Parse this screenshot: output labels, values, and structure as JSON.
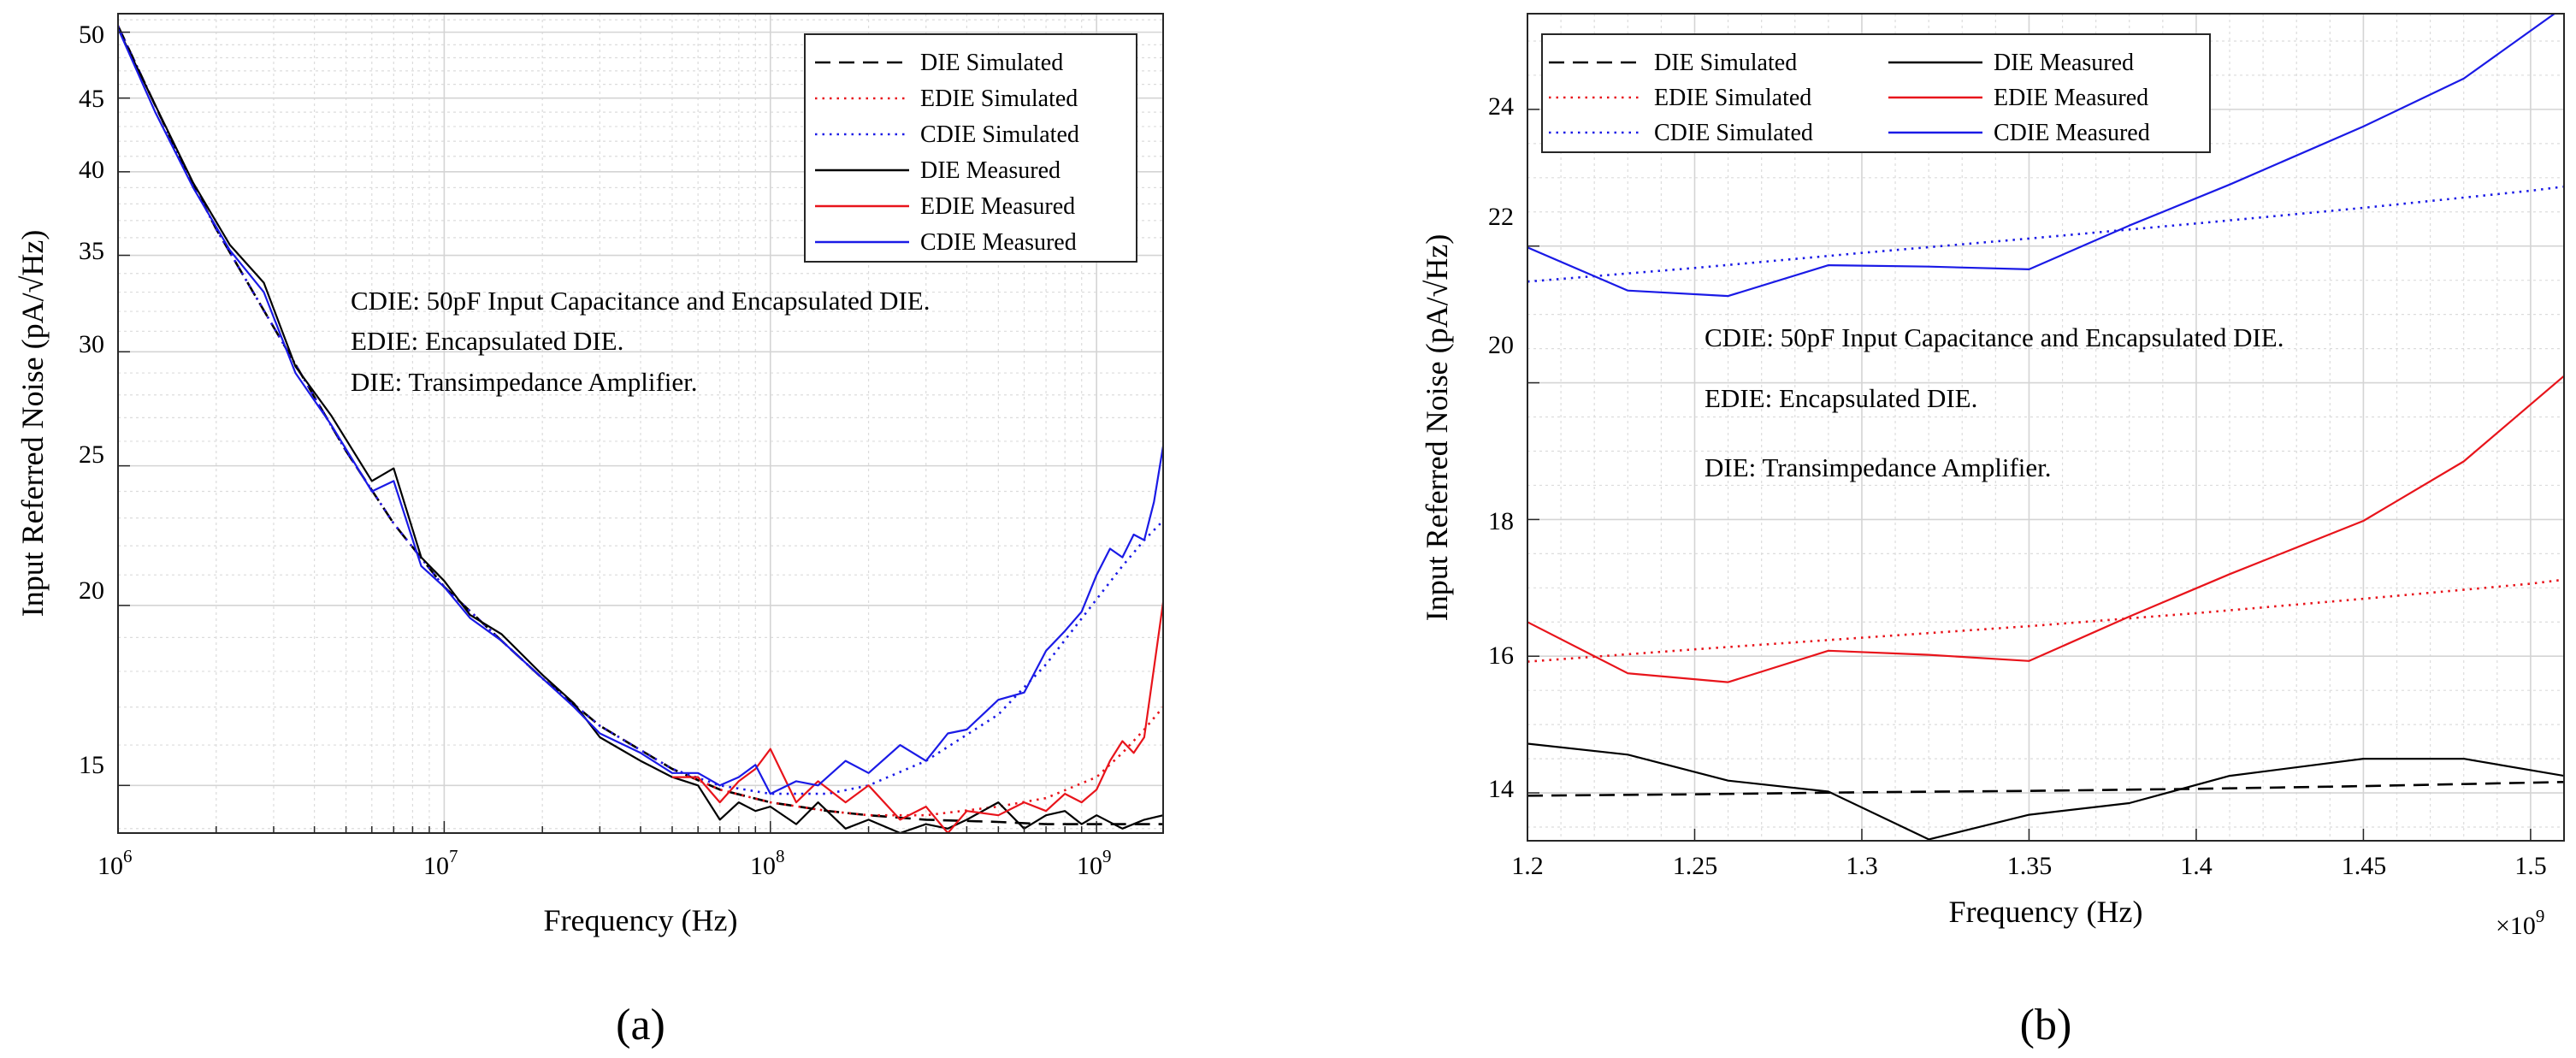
{
  "chart_data": [
    {
      "type": "line",
      "panel_label": "(a)",
      "xscale": "log",
      "yscale": "log",
      "xlim": [
        1000000,
        1600000000
      ],
      "ylim": [
        13.9,
        51.5
      ],
      "xlabel": "Frequency (Hz)",
      "ylabel": "Input Referred Noise (pA/√Hz)",
      "x_ticks": [
        {
          "value": 1000000,
          "base": "10",
          "exp": "6"
        },
        {
          "value": 10000000,
          "base": "10",
          "exp": "7"
        },
        {
          "value": 100000000,
          "base": "10",
          "exp": "8"
        },
        {
          "value": 1000000000,
          "base": "10",
          "exp": "9"
        }
      ],
      "y_ticks": [
        {
          "value": 15,
          "label": "15"
        },
        {
          "value": 20,
          "label": "20"
        },
        {
          "value": 25,
          "label": "25"
        },
        {
          "value": 30,
          "label": "30"
        },
        {
          "value": 35,
          "label": "35"
        },
        {
          "value": 40,
          "label": "40"
        },
        {
          "value": 45,
          "label": "45"
        },
        {
          "value": 50,
          "label": "50"
        }
      ],
      "legend_position": "top-right",
      "annotations": [
        "CDIE: 50pF Input Capacitance and Encapsulated DIE.",
        "EDIE: Encapsulated DIE.",
        "DIE: Transimpedance Amplifier."
      ],
      "series": [
        {
          "name": "DIE Simulated",
          "style": "dashed",
          "color": "#000000",
          "x": [
            1000000,
            1500000,
            2000000,
            3000000,
            5000000,
            7000000,
            10000000,
            15000000,
            20000000,
            30000000,
            50000000,
            70000000,
            100000000,
            150000000,
            200000000,
            300000000,
            500000000,
            700000000,
            1000000000,
            1600000000
          ],
          "y": [
            50.5,
            41.5,
            36.5,
            31.2,
            25.6,
            22.8,
            20.6,
            18.9,
            17.8,
            16.5,
            15.4,
            14.9,
            14.6,
            14.4,
            14.3,
            14.2,
            14.15,
            14.1,
            14.1,
            14.1
          ]
        },
        {
          "name": "EDIE Simulated",
          "style": "dotted",
          "color": "#e8141b",
          "x": [
            1000000,
            1500000,
            2000000,
            3000000,
            5000000,
            7000000,
            10000000,
            15000000,
            20000000,
            30000000,
            50000000,
            70000000,
            100000000,
            150000000,
            200000000,
            300000000,
            500000000,
            700000000,
            1000000000,
            1200000000,
            1400000000,
            1600000000
          ],
          "y": [
            50.5,
            41.5,
            36.5,
            31.2,
            25.6,
            22.8,
            20.6,
            18.9,
            17.8,
            16.5,
            15.4,
            14.9,
            14.6,
            14.4,
            14.3,
            14.3,
            14.5,
            14.7,
            15.2,
            15.8,
            16.4,
            17.0
          ]
        },
        {
          "name": "CDIE Simulated",
          "style": "dotted",
          "color": "#1a1ae6",
          "x": [
            1000000,
            1500000,
            2000000,
            3000000,
            5000000,
            7000000,
            10000000,
            15000000,
            20000000,
            30000000,
            50000000,
            70000000,
            100000000,
            150000000,
            200000000,
            300000000,
            500000000,
            700000000,
            1000000000,
            1200000000,
            1400000000,
            1600000000
          ],
          "y": [
            50.5,
            41.5,
            36.5,
            31.2,
            25.6,
            22.8,
            20.6,
            18.9,
            17.8,
            16.5,
            15.4,
            15.0,
            14.8,
            14.8,
            15.0,
            15.6,
            16.8,
            18.2,
            20.2,
            21.3,
            22.2,
            22.9
          ]
        },
        {
          "name": "DIE Measured",
          "style": "solid",
          "color": "#000000",
          "x": [
            1000000,
            1300000,
            1700000,
            2200000,
            2800000,
            3500000,
            4500000,
            6000000,
            7000000,
            8500000,
            10000000,
            12000000,
            15000000,
            20000000,
            25000000,
            30000000,
            40000000,
            50000000,
            60000000,
            70000000,
            80000000,
            90000000,
            100000000,
            120000000,
            140000000,
            170000000,
            200000000,
            250000000,
            300000000,
            350000000,
            400000000,
            500000000,
            600000000,
            700000000,
            800000000,
            900000000,
            1000000000,
            1200000000,
            1400000000,
            1600000000
          ],
          "y": [
            50.3,
            44.5,
            39.3,
            35.6,
            33.5,
            29.3,
            27.1,
            24.4,
            24.9,
            21.6,
            20.8,
            19.7,
            19.1,
            17.9,
            17.1,
            16.2,
            15.6,
            15.2,
            15.0,
            14.2,
            14.6,
            14.4,
            14.5,
            14.1,
            14.6,
            14.0,
            14.2,
            13.9,
            14.1,
            14.0,
            14.2,
            14.6,
            14.0,
            14.3,
            14.4,
            14.1,
            14.3,
            14.0,
            14.2,
            14.3
          ]
        },
        {
          "name": "EDIE Measured",
          "style": "solid",
          "color": "#e8141b",
          "x": [
            50000000,
            60000000,
            70000000,
            80000000,
            90000000,
            100000000,
            120000000,
            140000000,
            170000000,
            200000000,
            250000000,
            300000000,
            350000000,
            400000000,
            500000000,
            600000000,
            700000000,
            800000000,
            900000000,
            1000000000,
            1100000000,
            1200000000,
            1300000000,
            1400000000,
            1500000000,
            1600000000
          ],
          "y": [
            15.2,
            15.2,
            14.6,
            15.1,
            15.4,
            15.9,
            14.6,
            15.1,
            14.6,
            15.0,
            14.2,
            14.5,
            13.9,
            14.4,
            14.3,
            14.6,
            14.4,
            14.8,
            14.6,
            14.9,
            15.6,
            16.1,
            15.8,
            16.2,
            18.1,
            20.1
          ]
        },
        {
          "name": "CDIE Measured",
          "style": "solid",
          "color": "#1a1ae6",
          "x": [
            1000000,
            1300000,
            1700000,
            2200000,
            2800000,
            3500000,
            4500000,
            6000000,
            7000000,
            8500000,
            10000000,
            12000000,
            15000000,
            20000000,
            25000000,
            30000000,
            40000000,
            50000000,
            60000000,
            70000000,
            80000000,
            90000000,
            100000000,
            120000000,
            140000000,
            170000000,
            200000000,
            250000000,
            300000000,
            350000000,
            400000000,
            500000000,
            600000000,
            700000000,
            800000000,
            900000000,
            1000000000,
            1100000000,
            1200000000,
            1300000000,
            1400000000,
            1500000000,
            1600000000
          ],
          "y": [
            50.3,
            44.0,
            39.0,
            35.3,
            33.0,
            29.0,
            26.7,
            24.0,
            24.4,
            21.3,
            20.6,
            19.6,
            18.9,
            17.8,
            17.0,
            16.3,
            15.8,
            15.3,
            15.3,
            15.0,
            15.2,
            15.5,
            14.8,
            15.1,
            15.0,
            15.6,
            15.3,
            16.0,
            15.6,
            16.3,
            16.4,
            17.2,
            17.4,
            18.6,
            19.2,
            19.8,
            21.0,
            21.9,
            21.6,
            22.4,
            22.2,
            23.6,
            25.8
          ]
        }
      ]
    },
    {
      "type": "line",
      "panel_label": "(b)",
      "xscale": "linear",
      "yscale": "linear",
      "xlim": [
        1.2,
        1.51
      ],
      "ylim": [
        13.3,
        25.4
      ],
      "x_multiplier": {
        "base": "×10",
        "exp": "9"
      },
      "xlabel": "Frequency (Hz)",
      "ylabel": "Input Referred Noise (pA/√Hz)",
      "x_ticks": [
        {
          "value": 1.2,
          "label": "1.2"
        },
        {
          "value": 1.25,
          "label": "1.25"
        },
        {
          "value": 1.3,
          "label": "1.3"
        },
        {
          "value": 1.35,
          "label": "1.35"
        },
        {
          "value": 1.4,
          "label": "1.4"
        },
        {
          "value": 1.45,
          "label": "1.45"
        },
        {
          "value": 1.5,
          "label": "1.5"
        }
      ],
      "y_ticks": [
        {
          "value": 14,
          "label": "14"
        },
        {
          "value": 16,
          "label": "16"
        },
        {
          "value": 18,
          "label": "18"
        },
        {
          "value": 20,
          "label": "20"
        },
        {
          "value": 22,
          "label": "22"
        },
        {
          "value": 24,
          "label": "24"
        }
      ],
      "legend_position": "top-left",
      "annotations": [
        "CDIE: 50pF Input Capacitance and Encapsulated DIE.",
        "EDIE: Encapsulated DIE.",
        "DIE: Transimpedance Amplifier."
      ],
      "series": [
        {
          "name": "DIE Simulated",
          "style": "dashed",
          "color": "#000000",
          "x": [
            1.2,
            1.25,
            1.3,
            1.35,
            1.4,
            1.45,
            1.5,
            1.51
          ],
          "y": [
            13.96,
            13.98,
            14.01,
            14.03,
            14.06,
            14.1,
            14.15,
            14.16
          ]
        },
        {
          "name": "EDIE Simulated",
          "style": "dotted",
          "color": "#e8141b",
          "x": [
            1.2,
            1.25,
            1.3,
            1.35,
            1.4,
            1.45,
            1.5,
            1.51
          ],
          "y": [
            15.92,
            16.1,
            16.27,
            16.44,
            16.63,
            16.84,
            17.06,
            17.12
          ]
        },
        {
          "name": "CDIE Simulated",
          "style": "dotted",
          "color": "#1a1ae6",
          "x": [
            1.2,
            1.25,
            1.3,
            1.35,
            1.4,
            1.45,
            1.5,
            1.51
          ],
          "y": [
            21.48,
            21.68,
            21.9,
            22.11,
            22.33,
            22.56,
            22.81,
            22.87
          ]
        },
        {
          "name": "DIE Measured",
          "style": "solid",
          "color": "#000000",
          "x": [
            1.2,
            1.23,
            1.26,
            1.29,
            1.32,
            1.35,
            1.38,
            1.41,
            1.45,
            1.48,
            1.51
          ],
          "y": [
            14.72,
            14.56,
            14.18,
            14.02,
            13.32,
            13.68,
            13.85,
            14.25,
            14.5,
            14.5,
            14.25
          ]
        },
        {
          "name": "EDIE Measured",
          "style": "solid",
          "color": "#e8141b",
          "x": [
            1.2,
            1.23,
            1.26,
            1.29,
            1.32,
            1.35,
            1.38,
            1.41,
            1.45,
            1.48,
            1.51
          ],
          "y": [
            16.5,
            15.75,
            15.62,
            16.08,
            16.02,
            15.93,
            16.58,
            17.2,
            17.98,
            18.85,
            20.1
          ]
        },
        {
          "name": "CDIE Measured",
          "style": "solid",
          "color": "#1a1ae6",
          "x": [
            1.2,
            1.23,
            1.26,
            1.29,
            1.32,
            1.35,
            1.38,
            1.41,
            1.45,
            1.48,
            1.51
          ],
          "y": [
            21.98,
            21.35,
            21.27,
            21.72,
            21.7,
            21.66,
            22.3,
            22.9,
            23.75,
            24.45,
            25.5
          ]
        }
      ]
    }
  ]
}
